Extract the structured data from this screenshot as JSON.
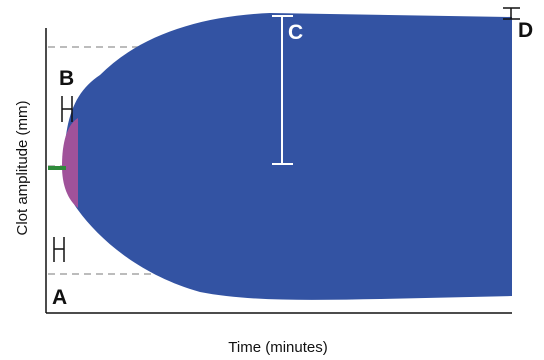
{
  "diagram": {
    "x_axis_label": "Time (minutes)",
    "y_axis_label": "Clot amplitude (mm)",
    "markers": {
      "a": "A",
      "b": "B",
      "c": "C",
      "d": "D"
    },
    "colors": {
      "clot_fill": "#3353a3",
      "initiation_fill": "#a0529a",
      "baseline_trace": "#2e8b3a",
      "reference_line": "#a6a6a6",
      "axis": "#111111",
      "marker_text_dark": "#111111",
      "marker_text_light": "#ffffff"
    }
  }
}
